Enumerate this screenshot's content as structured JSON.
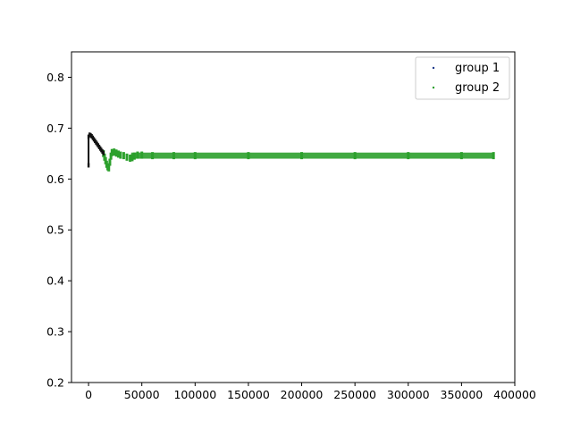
{
  "chart_data": {
    "type": "scatter",
    "title": "",
    "xlabel": "",
    "ylabel": "",
    "xlim": [
      -16000,
      400000
    ],
    "ylim": [
      0.2,
      0.85
    ],
    "x_ticks": [
      0,
      50000,
      100000,
      150000,
      200000,
      250000,
      300000,
      350000,
      400000
    ],
    "x_tick_labels": [
      "0",
      "50000",
      "100000",
      "150000",
      "200000",
      "250000",
      "300000",
      "350000",
      "400000"
    ],
    "y_ticks": [
      0.2,
      0.3,
      0.4,
      0.5,
      0.6,
      0.7,
      0.8
    ],
    "y_tick_labels": [
      "0.2",
      "0.3",
      "0.4",
      "0.5",
      "0.6",
      "0.7",
      "0.8"
    ],
    "grid": false,
    "legend_position": "top-right",
    "series": [
      {
        "name": "group 1",
        "color": "#1f3a8a",
        "points": [
          [
            0,
            0.627
          ],
          [
            0,
            0.683
          ],
          [
            1000,
            0.687
          ],
          [
            2000,
            0.686
          ],
          [
            3000,
            0.684
          ],
          [
            4000,
            0.681
          ],
          [
            5000,
            0.678
          ],
          [
            6000,
            0.675
          ],
          [
            7000,
            0.672
          ],
          [
            8000,
            0.669
          ],
          [
            9000,
            0.666
          ],
          [
            10000,
            0.663
          ],
          [
            11000,
            0.66
          ],
          [
            12000,
            0.657
          ],
          [
            13000,
            0.654
          ],
          [
            14000,
            0.651
          ]
        ]
      },
      {
        "name": "group 2",
        "color": "#2ca02c",
        "points": [
          [
            14000,
            0.65
          ],
          [
            15000,
            0.643
          ],
          [
            16000,
            0.636
          ],
          [
            17000,
            0.629
          ],
          [
            18000,
            0.624
          ],
          [
            19000,
            0.622
          ],
          [
            20000,
            0.633
          ],
          [
            21000,
            0.645
          ],
          [
            22000,
            0.652
          ],
          [
            24000,
            0.653
          ],
          [
            26000,
            0.651
          ],
          [
            28000,
            0.649
          ],
          [
            30000,
            0.647
          ],
          [
            33000,
            0.646
          ],
          [
            36000,
            0.643
          ],
          [
            39000,
            0.641
          ],
          [
            41000,
            0.642
          ],
          [
            43000,
            0.645
          ],
          [
            46000,
            0.647
          ],
          [
            50000,
            0.647
          ],
          [
            60000,
            0.646
          ],
          [
            80000,
            0.646
          ],
          [
            100000,
            0.646
          ],
          [
            150000,
            0.646
          ],
          [
            200000,
            0.646
          ],
          [
            250000,
            0.646
          ],
          [
            300000,
            0.646
          ],
          [
            350000,
            0.646
          ],
          [
            380000,
            0.646
          ]
        ],
        "band": {
          "x_start": 40000,
          "x_end": 380000,
          "y_low": 0.64,
          "y_high": 0.652
        }
      }
    ]
  }
}
